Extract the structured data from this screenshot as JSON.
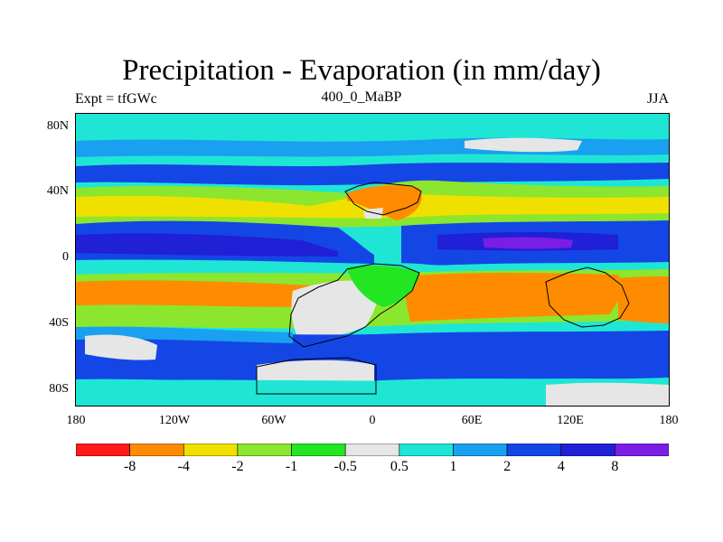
{
  "title": "Precipitation - Evaporation (in mm/day)",
  "left_label": "Expt = tfGWc",
  "center_label": "400_0_MaBP",
  "right_label": "JJA",
  "lat_ticks": [
    "80N",
    "40N",
    "0",
    "40S",
    "80S"
  ],
  "lon_ticks": [
    "180",
    "120W",
    "60W",
    "0",
    "60E",
    "120E",
    "180"
  ],
  "colorbar": {
    "colors": [
      "#ff1a1a",
      "#ff8c00",
      "#f0e000",
      "#8ce62e",
      "#22e622",
      "#e6e6e6",
      "#1fe6d4",
      "#1aa0f0",
      "#1446e6",
      "#2020d6",
      "#7a1ee6"
    ],
    "labels": [
      "-8",
      "-4",
      "-2",
      "-1",
      "-0.5",
      "0.5",
      "1",
      "2",
      "4",
      "8"
    ]
  }
}
